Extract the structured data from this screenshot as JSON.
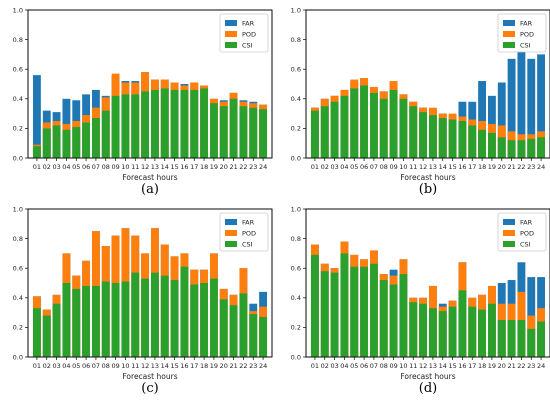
{
  "colors": {
    "FAR": "#1f77b4",
    "POD": "#ff7f0e",
    "CSI": "#2ca02c"
  },
  "chart_data": [
    {
      "type": "bar",
      "label": "(a)",
      "xlabel": "Forecast hours",
      "ylabel": "",
      "ylim": [
        0,
        1.0
      ],
      "yticks": [
        "0.0",
        "0.2",
        "0.4",
        "0.6",
        "0.8",
        "1.0"
      ],
      "grid": false,
      "legend_position": "top-right",
      "categories": [
        "01",
        "02",
        "03",
        "04",
        "05",
        "06",
        "07",
        "08",
        "09",
        "10",
        "11",
        "12",
        "13",
        "14",
        "15",
        "16",
        "17",
        "18",
        "19",
        "20",
        "21",
        "22",
        "23",
        "24"
      ],
      "series": [
        {
          "name": "FAR",
          "values": [
            0.56,
            0.32,
            0.31,
            0.4,
            0.39,
            0.43,
            0.46,
            0.42,
            0.55,
            0.52,
            0.52,
            0.58,
            0.53,
            0.53,
            0.51,
            0.5,
            0.51,
            0.49,
            0.4,
            0.39,
            0.44,
            0.39,
            0.38,
            0.36
          ]
        },
        {
          "name": "POD",
          "values": [
            0.09,
            0.24,
            0.25,
            0.23,
            0.25,
            0.29,
            0.34,
            0.41,
            0.57,
            0.51,
            0.51,
            0.58,
            0.53,
            0.53,
            0.51,
            0.49,
            0.51,
            0.49,
            0.4,
            0.38,
            0.44,
            0.38,
            0.37,
            0.36
          ]
        },
        {
          "name": "CSI",
          "values": [
            0.08,
            0.2,
            0.22,
            0.19,
            0.21,
            0.24,
            0.27,
            0.32,
            0.42,
            0.43,
            0.43,
            0.45,
            0.46,
            0.47,
            0.46,
            0.46,
            0.46,
            0.47,
            0.37,
            0.35,
            0.4,
            0.35,
            0.34,
            0.33
          ]
        }
      ]
    },
    {
      "type": "bar",
      "label": "(b)",
      "xlabel": "Forecast hours",
      "ylabel": "",
      "ylim": [
        0,
        1.0
      ],
      "yticks": [
        "0.0",
        "0.2",
        "0.4",
        "0.6",
        "0.8",
        "1.0"
      ],
      "grid": false,
      "legend_position": "top-right",
      "categories": [
        "01",
        "02",
        "03",
        "04",
        "05",
        "06",
        "07",
        "08",
        "09",
        "10",
        "11",
        "12",
        "13",
        "14",
        "15",
        "16",
        "17",
        "18",
        "19",
        "20",
        "21",
        "22",
        "23",
        "24"
      ],
      "series": [
        {
          "name": "FAR",
          "values": [
            0.34,
            0.4,
            0.42,
            0.46,
            0.52,
            0.54,
            0.48,
            0.45,
            0.51,
            0.43,
            0.38,
            0.34,
            0.33,
            0.3,
            0.29,
            0.38,
            0.38,
            0.52,
            0.42,
            0.51,
            0.67,
            0.72,
            0.67,
            0.7
          ]
        },
        {
          "name": "POD",
          "values": [
            0.34,
            0.4,
            0.42,
            0.46,
            0.53,
            0.54,
            0.48,
            0.45,
            0.52,
            0.43,
            0.38,
            0.34,
            0.34,
            0.3,
            0.3,
            0.28,
            0.26,
            0.25,
            0.23,
            0.22,
            0.18,
            0.16,
            0.16,
            0.18
          ]
        },
        {
          "name": "CSI",
          "values": [
            0.32,
            0.35,
            0.38,
            0.42,
            0.47,
            0.49,
            0.44,
            0.4,
            0.46,
            0.4,
            0.35,
            0.31,
            0.29,
            0.27,
            0.26,
            0.25,
            0.22,
            0.19,
            0.17,
            0.14,
            0.12,
            0.12,
            0.13,
            0.14
          ]
        }
      ]
    },
    {
      "type": "bar",
      "label": "(c)",
      "xlabel": "Forecast hours",
      "ylabel": "",
      "ylim": [
        0,
        1.0
      ],
      "yticks": [
        "0.0",
        "0.2",
        "0.4",
        "0.6",
        "0.8",
        "1.0"
      ],
      "grid": false,
      "legend_position": "top-right",
      "categories": [
        "01",
        "02",
        "03",
        "04",
        "05",
        "06",
        "07",
        "08",
        "09",
        "10",
        "11",
        "12",
        "13",
        "14",
        "15",
        "16",
        "17",
        "18",
        "19",
        "20",
        "21",
        "22",
        "23",
        "24"
      ],
      "series": [
        {
          "name": "FAR",
          "values": [
            0.41,
            0.32,
            0.42,
            0.7,
            0.55,
            0.65,
            0.85,
            0.75,
            0.82,
            0.87,
            0.82,
            0.7,
            0.87,
            0.76,
            0.68,
            0.7,
            0.59,
            0.59,
            0.7,
            0.46,
            0.42,
            0.6,
            0.36,
            0.44
          ]
        },
        {
          "name": "POD",
          "values": [
            0.41,
            0.32,
            0.42,
            0.7,
            0.55,
            0.65,
            0.85,
            0.75,
            0.82,
            0.87,
            0.82,
            0.7,
            0.87,
            0.76,
            0.68,
            0.7,
            0.59,
            0.59,
            0.7,
            0.46,
            0.42,
            0.6,
            0.31,
            0.34
          ]
        },
        {
          "name": "CSI",
          "values": [
            0.33,
            0.28,
            0.36,
            0.5,
            0.46,
            0.48,
            0.48,
            0.51,
            0.5,
            0.51,
            0.57,
            0.53,
            0.57,
            0.55,
            0.52,
            0.61,
            0.49,
            0.5,
            0.53,
            0.39,
            0.35,
            0.43,
            0.29,
            0.27
          ]
        }
      ]
    },
    {
      "type": "bar",
      "label": "(d)",
      "xlabel": "Forecast hours",
      "ylabel": "",
      "ylim": [
        0,
        1.0
      ],
      "yticks": [
        "0.0",
        "0.2",
        "0.4",
        "0.6",
        "0.8",
        "1.0"
      ],
      "grid": false,
      "legend_position": "top-right",
      "categories": [
        "01",
        "02",
        "03",
        "04",
        "05",
        "06",
        "07",
        "08",
        "09",
        "10",
        "11",
        "12",
        "13",
        "14",
        "15",
        "16",
        "17",
        "18",
        "19",
        "20",
        "21",
        "22",
        "23",
        "24"
      ],
      "series": [
        {
          "name": "FAR",
          "values": [
            0.76,
            0.63,
            0.6,
            0.78,
            0.69,
            0.66,
            0.72,
            0.56,
            0.59,
            0.66,
            0.4,
            0.4,
            0.48,
            0.36,
            0.38,
            0.64,
            0.4,
            0.42,
            0.48,
            0.5,
            0.52,
            0.64,
            0.54,
            0.54
          ]
        },
        {
          "name": "POD",
          "values": [
            0.76,
            0.63,
            0.6,
            0.78,
            0.69,
            0.66,
            0.72,
            0.56,
            0.55,
            0.66,
            0.4,
            0.4,
            0.48,
            0.34,
            0.38,
            0.64,
            0.4,
            0.42,
            0.48,
            0.36,
            0.36,
            0.44,
            0.28,
            0.33
          ]
        },
        {
          "name": "CSI",
          "values": [
            0.69,
            0.58,
            0.57,
            0.7,
            0.61,
            0.61,
            0.63,
            0.52,
            0.49,
            0.56,
            0.37,
            0.36,
            0.33,
            0.31,
            0.34,
            0.45,
            0.34,
            0.32,
            0.36,
            0.25,
            0.25,
            0.25,
            0.19,
            0.24
          ]
        }
      ]
    }
  ]
}
